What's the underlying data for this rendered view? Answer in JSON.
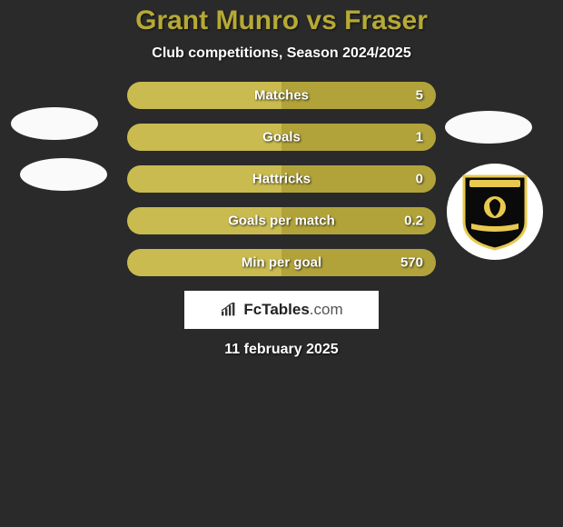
{
  "title": {
    "text": "Grant Munro vs Fraser",
    "color": "#b6a936"
  },
  "subtitle": "Club competitions, Season 2024/2025",
  "date": "11 february 2025",
  "brand": {
    "name_bold": "FcTables",
    "name_light": ".com"
  },
  "colors": {
    "background": "#2a2a2a",
    "bar_left": "#c9bb4f",
    "bar_right": "#b1a33a",
    "stat_text": "#ffffff",
    "crest_bg": "#0a0a0a",
    "crest_border": "#e8c94f"
  },
  "stats": [
    {
      "label": "Matches",
      "left_value": "",
      "right_value": "5"
    },
    {
      "label": "Goals",
      "left_value": "",
      "right_value": "1"
    },
    {
      "label": "Hattricks",
      "left_value": "",
      "right_value": "0"
    },
    {
      "label": "Goals per match",
      "left_value": "",
      "right_value": "0.2"
    },
    {
      "label": "Min per goal",
      "left_value": "",
      "right_value": "570"
    }
  ]
}
